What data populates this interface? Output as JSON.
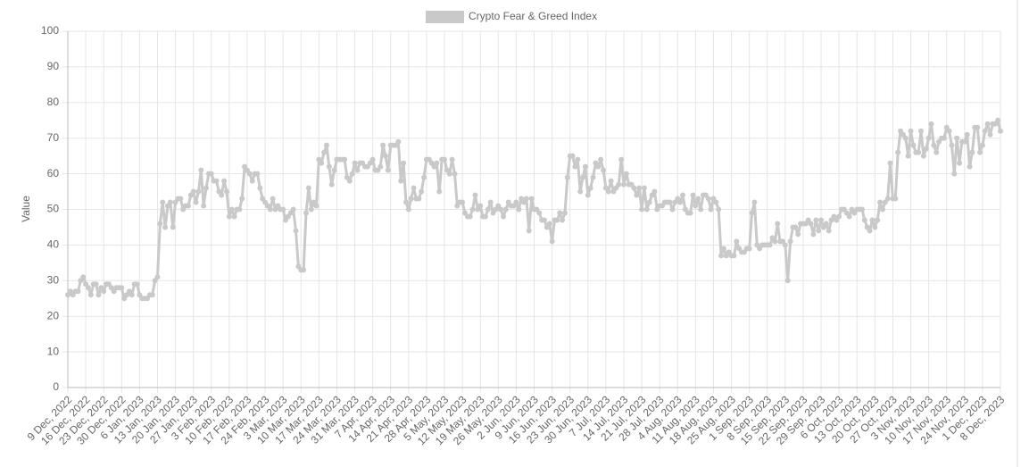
{
  "chart_data": {
    "type": "line",
    "y_label": "Value",
    "legend": "top",
    "grid": true,
    "ylim": [
      0,
      100
    ],
    "yticks": [
      0,
      10,
      20,
      30,
      40,
      50,
      60,
      70,
      80,
      90,
      100
    ],
    "categories": [
      "9 Dec, 2022",
      null,
      null,
      null,
      null,
      null,
      null,
      "16 Dec, 2022",
      null,
      null,
      null,
      null,
      null,
      null,
      "23 Dec, 2022",
      null,
      null,
      null,
      null,
      null,
      null,
      "30 Dec, 2022",
      null,
      null,
      null,
      null,
      null,
      null,
      "6 Jan, 2023",
      null,
      null,
      null,
      null,
      null,
      null,
      "13 Jan, 2023",
      null,
      null,
      null,
      null,
      null,
      null,
      "20 Jan, 2023",
      null,
      null,
      null,
      null,
      null,
      null,
      "27 Jan, 2023",
      null,
      null,
      null,
      null,
      null,
      null,
      "3 Feb, 2023",
      null,
      null,
      null,
      null,
      null,
      null,
      "10 Feb, 2023",
      null,
      null,
      null,
      null,
      null,
      null,
      "17 Feb, 2023",
      null,
      null,
      null,
      null,
      null,
      null,
      "24 Feb, 2023",
      null,
      null,
      null,
      null,
      null,
      null,
      "3 Mar, 2023",
      null,
      null,
      null,
      null,
      null,
      null,
      "10 Mar, 2023",
      null,
      null,
      null,
      null,
      null,
      null,
      "17 Mar, 2023",
      null,
      null,
      null,
      null,
      null,
      null,
      "24 Mar, 2023",
      null,
      null,
      null,
      null,
      null,
      null,
      "31 Mar, 2023",
      null,
      null,
      null,
      null,
      null,
      null,
      "7 Apr, 2023",
      null,
      null,
      null,
      null,
      null,
      null,
      "14 Apr, 2023",
      null,
      null,
      null,
      null,
      null,
      null,
      "21 Apr, 2023",
      null,
      null,
      null,
      null,
      null,
      null,
      "28 Apr, 2023",
      null,
      null,
      null,
      null,
      null,
      null,
      "5 May, 2023",
      null,
      null,
      null,
      null,
      null,
      null,
      "12 May, 2023",
      null,
      null,
      null,
      null,
      null,
      null,
      "19 May, 2023",
      null,
      null,
      null,
      null,
      null,
      null,
      "26 May, 2023",
      null,
      null,
      null,
      null,
      null,
      null,
      "2 Jun, 2023",
      null,
      null,
      null,
      null,
      null,
      null,
      "9 Jun, 2023",
      null,
      null,
      null,
      null,
      null,
      null,
      "16 Jun, 2023",
      null,
      null,
      null,
      null,
      null,
      null,
      "23 Jun, 2023",
      null,
      null,
      null,
      null,
      null,
      null,
      "30 Jun, 2023",
      null,
      null,
      null,
      null,
      null,
      null,
      "7 Jul, 2023",
      null,
      null,
      null,
      null,
      null,
      null,
      "14 Jul, 2023",
      null,
      null,
      null,
      null,
      null,
      null,
      "21 Jul, 2023",
      null,
      null,
      null,
      null,
      null,
      null,
      "28 Jul, 2023",
      null,
      null,
      null,
      null,
      null,
      null,
      "4 Aug, 2023",
      null,
      null,
      null,
      null,
      null,
      null,
      "11 Aug, 2023",
      null,
      null,
      null,
      null,
      null,
      null,
      "18 Aug, 2023",
      null,
      null,
      null,
      null,
      null,
      null,
      "25 Aug, 2023",
      null,
      null,
      null,
      null,
      null,
      null,
      "1 Sep, 2023",
      null,
      null,
      null,
      null,
      null,
      null,
      "8 Sep, 2023",
      null,
      null,
      null,
      null,
      null,
      null,
      "15 Sep, 2023",
      null,
      null,
      null,
      null,
      null,
      null,
      "22 Sep, 2023",
      null,
      null,
      null,
      null,
      null,
      null,
      "29 Sep, 2023",
      null,
      null,
      null,
      null,
      null,
      null,
      "6 Oct, 2023",
      null,
      null,
      null,
      null,
      null,
      null,
      "13 Oct, 2023",
      null,
      null,
      null,
      null,
      null,
      null,
      "20 Oct, 2023",
      null,
      null,
      null,
      null,
      null,
      null,
      "27 Oct, 2023",
      null,
      null,
      null,
      null,
      null,
      null,
      "3 Nov, 2023",
      null,
      null,
      null,
      null,
      null,
      null,
      "10 Nov, 2023",
      null,
      null,
      null,
      null,
      null,
      null,
      "17 Nov, 2023",
      null,
      null,
      null,
      null,
      null,
      null,
      "24 Nov, 2023",
      null,
      null,
      null,
      null,
      null,
      null,
      "1 Dec, 2023",
      null,
      null,
      null,
      null,
      null,
      null,
      "8 Dec, 2023"
    ],
    "series": [
      {
        "name": "Crypto Fear & Greed Index",
        "color": "#c9c9c9",
        "values": [
          26,
          27,
          26,
          27,
          27,
          30,
          31,
          29,
          28,
          26,
          29,
          29,
          26,
          28,
          27,
          29,
          29,
          28,
          27,
          28,
          28,
          28,
          25,
          26,
          27,
          26,
          29,
          29,
          26,
          25,
          25,
          25,
          26,
          26,
          30,
          31,
          46,
          52,
          45,
          51,
          52,
          45,
          52,
          53,
          53,
          50,
          51,
          51,
          54,
          55,
          52,
          55,
          61,
          51,
          56,
          60,
          60,
          58,
          58,
          55,
          54,
          58,
          55,
          48,
          50,
          48,
          50,
          50,
          53,
          62,
          61,
          60,
          58,
          60,
          60,
          56,
          53,
          52,
          51,
          50,
          53,
          50,
          51,
          50,
          50,
          47,
          48,
          49,
          50,
          44,
          34,
          33,
          33,
          49,
          56,
          50,
          52,
          51,
          64,
          63,
          66,
          68,
          62,
          57,
          61,
          64,
          64,
          64,
          64,
          59,
          58,
          60,
          63,
          61,
          63,
          63,
          62,
          62,
          63,
          64,
          61,
          61,
          62,
          68,
          65,
          61,
          68,
          68,
          68,
          69,
          58,
          63,
          52,
          50,
          53,
          56,
          53,
          53,
          55,
          59,
          64,
          64,
          63,
          62,
          63,
          55,
          64,
          64,
          61,
          60,
          64,
          60,
          51,
          52,
          52,
          49,
          48,
          48,
          50,
          54,
          50,
          51,
          48,
          48,
          50,
          52,
          49,
          50,
          51,
          50,
          48,
          50,
          52,
          51,
          51,
          52,
          50,
          53,
          52,
          53,
          44,
          53,
          50,
          50,
          49,
          47,
          47,
          45,
          46,
          41,
          47,
          47,
          49,
          47,
          49,
          59,
          65,
          65,
          62,
          64,
          55,
          59,
          62,
          54,
          56,
          59,
          63,
          62,
          64,
          61,
          56,
          55,
          58,
          55,
          56,
          57,
          64,
          57,
          60,
          57,
          57,
          56,
          54,
          56,
          50,
          56,
          50,
          52,
          54,
          55,
          50,
          51,
          51,
          52,
          52,
          52,
          50,
          52,
          53,
          52,
          54,
          50,
          49,
          49,
          54,
          51,
          53,
          50,
          54,
          54,
          53,
          50,
          53,
          52,
          50,
          37,
          39,
          37,
          38,
          37,
          37,
          41,
          39,
          38,
          38,
          39,
          39,
          49,
          52,
          40,
          39,
          40,
          40,
          40,
          40,
          42,
          41,
          46,
          41,
          41,
          40,
          30,
          41,
          45,
          45,
          43,
          46,
          46,
          46,
          47,
          46,
          43,
          47,
          44,
          47,
          45,
          46,
          44,
          47,
          48,
          47,
          48,
          50,
          50,
          49,
          48,
          50,
          49,
          50,
          50,
          50,
          47,
          45,
          44,
          47,
          45,
          47,
          52,
          50,
          52,
          53,
          63,
          53,
          53,
          66,
          72,
          71,
          70,
          65,
          72,
          68,
          66,
          66,
          72,
          65,
          67,
          70,
          74,
          68,
          66,
          69,
          70,
          70,
          73,
          72,
          68,
          60,
          70,
          63,
          69,
          69,
          71,
          62,
          66,
          73,
          73,
          66,
          68,
          72,
          74,
          71,
          74,
          74,
          75,
          72
        ]
      }
    ]
  }
}
